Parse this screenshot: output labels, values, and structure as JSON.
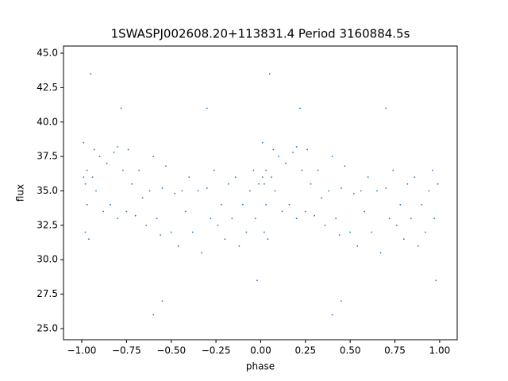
{
  "chart_data": {
    "type": "scatter",
    "title": "1SWASPJ002608.20+113831.4 Period 3160884.5s",
    "x_label": "phase",
    "y_label": "flux",
    "color": "#1f77b4",
    "xlim": [
      -1.102,
      1.098
    ],
    "ylim": [
      24.19,
      45.52
    ],
    "xticks": [
      {
        "value": -1,
        "label": "−1.00"
      },
      {
        "value": -0.75,
        "label": "−0.75"
      },
      {
        "value": -0.5,
        "label": "−0.50"
      },
      {
        "value": -0.25,
        "label": "−0.25"
      },
      {
        "value": 0,
        "label": "0.00"
      },
      {
        "value": 0.25,
        "label": "0.25"
      },
      {
        "value": 0.5,
        "label": "0.50"
      },
      {
        "value": 0.75,
        "label": "0.75"
      },
      {
        "value": 1,
        "label": "1.00"
      }
    ],
    "yticks": [
      {
        "value": 25,
        "label": "25.0"
      },
      {
        "value": 27.5,
        "label": "27.5"
      },
      {
        "value": 30,
        "label": "30.0"
      },
      {
        "value": 32.5,
        "label": "32.5"
      },
      {
        "value": 35,
        "label": "35.0"
      },
      {
        "value": 37.5,
        "label": "37.5"
      },
      {
        "value": 40,
        "label": "40.0"
      },
      {
        "value": 42.5,
        "label": "42.5"
      },
      {
        "value": 45,
        "label": "45.0"
      }
    ],
    "x": [
      -0.99,
      -0.99,
      -0.98,
      -0.98,
      -0.97,
      -0.97,
      -0.96,
      -0.95,
      -0.94,
      -0.93,
      -0.92,
      -0.9,
      -0.88,
      -0.86,
      -0.84,
      -0.82,
      -0.8,
      -0.8,
      -0.78,
      -0.77,
      -0.75,
      -0.74,
      -0.72,
      -0.7,
      -0.68,
      -0.66,
      -0.64,
      -0.62,
      -0.6,
      -0.58,
      -0.56,
      -0.55,
      -0.53,
      -0.5,
      -0.48,
      -0.46,
      -0.44,
      -0.42,
      -0.4,
      -0.38,
      -0.35,
      -0.33,
      -0.3,
      -0.28,
      -0.26,
      -0.24,
      -0.22,
      -0.2,
      -0.18,
      -0.16,
      -0.14,
      -0.12,
      -0.1,
      -0.08,
      -0.06,
      -0.04,
      -0.03,
      -0.02,
      -0.01,
      -0.55,
      -0.3,
      -0.6,
      0.01,
      0.01,
      0.02,
      0.02,
      0.03,
      0.03,
      0.04,
      0.05,
      0.06,
      0.07,
      0.08,
      0.1,
      0.12,
      0.14,
      0.16,
      0.18,
      0.2,
      0.2,
      0.22,
      0.23,
      0.25,
      0.26,
      0.28,
      0.3,
      0.32,
      0.34,
      0.36,
      0.38,
      0.4,
      0.42,
      0.44,
      0.45,
      0.47,
      0.5,
      0.52,
      0.54,
      0.56,
      0.58,
      0.6,
      0.62,
      0.65,
      0.67,
      0.7,
      0.72,
      0.74,
      0.76,
      0.78,
      0.8,
      0.82,
      0.84,
      0.86,
      0.88,
      0.9,
      0.92,
      0.94,
      0.96,
      0.97,
      0.98,
      0.99,
      0.45,
      0.7,
      0.4
    ],
    "values": [
      36.0,
      38.5,
      32.0,
      35.5,
      36.5,
      34.0,
      31.5,
      43.5,
      36.0,
      38.0,
      35.0,
      37.5,
      33.5,
      37.0,
      34.0,
      37.8,
      38.2,
      33.0,
      41.0,
      36.5,
      33.5,
      38.0,
      35.5,
      33.2,
      36.5,
      34.5,
      32.5,
      35.0,
      37.5,
      33.0,
      31.8,
      35.2,
      36.8,
      32.0,
      34.8,
      31.0,
      35.0,
      33.5,
      36.0,
      32.0,
      35.0,
      30.5,
      35.2,
      33.0,
      36.5,
      32.5,
      34.0,
      31.5,
      35.5,
      33.0,
      36.0,
      31.0,
      34.0,
      32.0,
      35.0,
      36.5,
      33.0,
      28.5,
      35.5,
      27.0,
      41.0,
      26.0,
      36.0,
      38.5,
      32.0,
      35.5,
      36.5,
      34.0,
      31.5,
      43.5,
      36.0,
      38.0,
      35.0,
      37.5,
      33.5,
      37.0,
      34.0,
      37.8,
      38.2,
      33.0,
      41.0,
      36.5,
      33.5,
      38.0,
      35.5,
      33.2,
      36.5,
      34.5,
      32.5,
      35.0,
      37.5,
      33.0,
      31.8,
      35.2,
      36.8,
      32.0,
      34.8,
      31.0,
      35.0,
      33.5,
      36.0,
      32.0,
      35.0,
      30.5,
      35.2,
      33.0,
      36.5,
      32.5,
      34.0,
      31.5,
      35.5,
      33.0,
      36.0,
      31.0,
      34.0,
      32.0,
      35.0,
      36.5,
      33.0,
      28.5,
      35.5,
      27.0,
      41.0,
      26.0
    ]
  }
}
